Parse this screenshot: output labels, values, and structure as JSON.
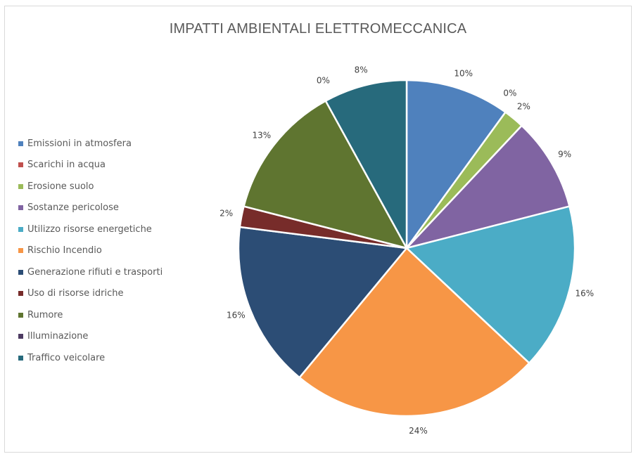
{
  "chart_data": {
    "type": "pie",
    "title": "IMPATTI AMBIENTALI ELETTROMECCANICA",
    "legend_position": "left",
    "categories": [
      "Emissioni in atmosfera",
      "Scarichi in acqua",
      "Erosione suolo",
      "Sostanze pericolose",
      "Utilizzo risorse energetiche",
      "Rischio Incendio",
      "Generazione rifiuti e trasporti",
      "Uso di risorse idriche",
      "Rumore",
      "Illuminazione",
      "Traffico veicolare"
    ],
    "values": [
      10,
      0,
      2,
      9,
      16,
      24,
      16,
      2,
      13,
      0,
      8
    ],
    "data_labels": [
      "10%",
      "0%",
      "2%",
      "9%",
      "16%",
      "24%",
      "16%",
      "2%",
      "13%",
      "0%",
      "8%"
    ],
    "colors": [
      "#4f81bd",
      "#c0504d",
      "#9bbb59",
      "#8064a2",
      "#4bacc6",
      "#f79646",
      "#2c4d75",
      "#772c2a",
      "#5f7530",
      "#4d3b62",
      "#276a7c"
    ]
  }
}
